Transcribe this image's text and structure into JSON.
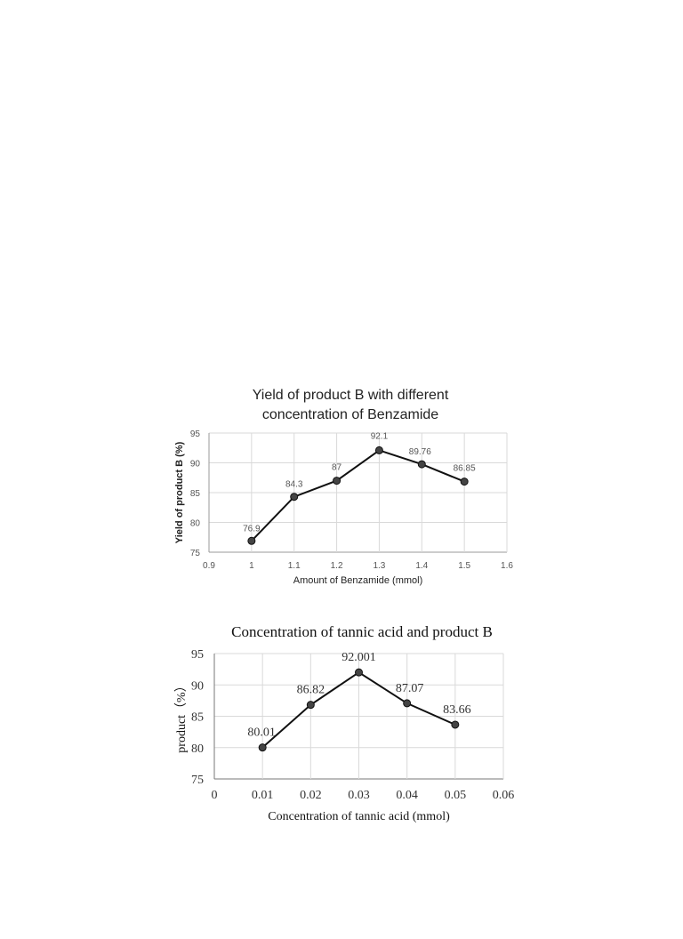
{
  "chart_data": [
    {
      "type": "line",
      "title_lines": [
        "Yield of product B with different",
        "concentration of Benzamide"
      ],
      "xlabel": "Amount of Benzamide (mmol)",
      "ylabel": "Yield of product B (%)",
      "xlim": [
        0.9,
        1.6
      ],
      "ylim": [
        75,
        95
      ],
      "x_ticks": [
        "0.9",
        "1",
        "1.1",
        "1.2",
        "1.3",
        "1.4",
        "1.5",
        "1.6"
      ],
      "y_ticks": [
        "75",
        "80",
        "85",
        "90",
        "95"
      ],
      "grid": true,
      "series": [
        {
          "x": [
            1.0,
            1.1,
            1.2,
            1.3,
            1.4,
            1.5
          ],
          "values": [
            76.9,
            84.3,
            87,
            92.1,
            89.76,
            86.85
          ],
          "labels": [
            "76.9",
            "84.3",
            "87",
            "92.1",
            "89.76",
            "86.85"
          ]
        }
      ]
    },
    {
      "type": "line",
      "title": "Concentration  of tannic  acid and product B",
      "xlabel": "Concentration  of tannic  acid (mmol)",
      "ylabel": "product（%）",
      "xlim": [
        0,
        0.06
      ],
      "ylim": [
        75,
        95
      ],
      "x_ticks": [
        "0",
        "0.01",
        "0.02",
        "0.03",
        "0.04",
        "0.05",
        "0.06"
      ],
      "y_ticks": [
        "75",
        "80",
        "85",
        "90",
        "95"
      ],
      "grid": true,
      "series": [
        {
          "x": [
            0.01,
            0.02,
            0.03,
            0.04,
            0.05
          ],
          "values": [
            80.01,
            86.82,
            92.001,
            87.07,
            83.66
          ],
          "labels": [
            "80.01",
            "86.82",
            "92.001",
            "87.07",
            "83.66"
          ]
        }
      ]
    }
  ]
}
